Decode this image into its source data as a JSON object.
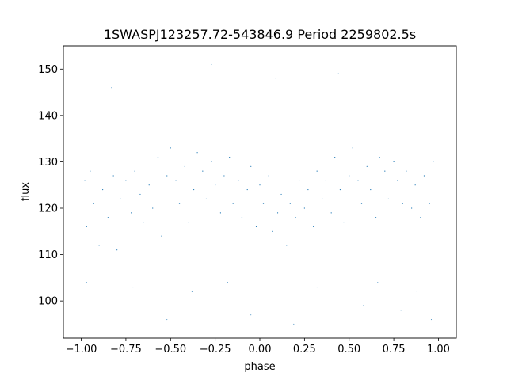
{
  "chart_data": {
    "type": "scatter",
    "title": "1SWASPJ123257.72-543846.9 Period 2259802.5s",
    "xlabel": "phase",
    "ylabel": "flux",
    "xlim": [
      -1.1,
      1.1
    ],
    "ylim": [
      92,
      155
    ],
    "xticks": [
      -1.0,
      -0.75,
      -0.5,
      -0.25,
      0.0,
      0.25,
      0.5,
      0.75,
      1.0
    ],
    "xtick_labels": [
      "−1.00",
      "−0.75",
      "−0.50",
      "−0.25",
      "0.00",
      "0.25",
      "0.50",
      "0.75",
      "1.00"
    ],
    "yticks": [
      100,
      110,
      120,
      130,
      140,
      150
    ],
    "ytick_labels": [
      "100",
      "110",
      "120",
      "130",
      "140",
      "150"
    ],
    "grid": false,
    "point_color": "#1f77b4",
    "phase_range": [
      -1.0,
      1.0
    ],
    "series": [
      {
        "values": [
          [
            -0.98,
            126
          ],
          [
            -0.97,
            116
          ],
          [
            -0.95,
            128
          ],
          [
            -0.93,
            121
          ],
          [
            -0.9,
            112
          ],
          [
            -0.88,
            124
          ],
          [
            -0.85,
            118
          ],
          [
            -0.82,
            127
          ],
          [
            -0.8,
            111
          ],
          [
            -0.78,
            122
          ],
          [
            -0.75,
            126
          ],
          [
            -0.72,
            119
          ],
          [
            -0.7,
            128
          ],
          [
            -0.67,
            123
          ],
          [
            -0.65,
            117
          ],
          [
            -0.62,
            125
          ],
          [
            -0.6,
            120
          ],
          [
            -0.57,
            131
          ],
          [
            -0.55,
            114
          ],
          [
            -0.52,
            127
          ],
          [
            -0.5,
            133
          ],
          [
            -0.47,
            126
          ],
          [
            -0.45,
            121
          ],
          [
            -0.42,
            129
          ],
          [
            -0.4,
            117
          ],
          [
            -0.37,
            124
          ],
          [
            -0.35,
            132
          ],
          [
            -0.32,
            128
          ],
          [
            -0.3,
            122
          ],
          [
            -0.27,
            130
          ],
          [
            -0.25,
            125
          ],
          [
            -0.22,
            119
          ],
          [
            -0.2,
            127
          ],
          [
            -0.17,
            131
          ],
          [
            -0.15,
            121
          ],
          [
            -0.12,
            126
          ],
          [
            -0.1,
            118
          ],
          [
            -0.07,
            124
          ],
          [
            -0.05,
            129
          ],
          [
            -0.02,
            116
          ],
          [
            0.0,
            125
          ],
          [
            0.02,
            121
          ],
          [
            0.05,
            127
          ],
          [
            0.07,
            115
          ],
          [
            0.1,
            119
          ],
          [
            0.12,
            123
          ],
          [
            0.15,
            112
          ],
          [
            0.17,
            121
          ],
          [
            0.2,
            118
          ],
          [
            0.22,
            126
          ],
          [
            0.25,
            120
          ],
          [
            0.27,
            124
          ],
          [
            0.3,
            116
          ],
          [
            0.32,
            128
          ],
          [
            0.35,
            122
          ],
          [
            0.37,
            126
          ],
          [
            0.4,
            119
          ],
          [
            0.42,
            131
          ],
          [
            0.45,
            124
          ],
          [
            0.47,
            117
          ],
          [
            0.5,
            127
          ],
          [
            0.52,
            133
          ],
          [
            0.55,
            126
          ],
          [
            0.57,
            121
          ],
          [
            0.6,
            129
          ],
          [
            0.62,
            124
          ],
          [
            0.65,
            118
          ],
          [
            0.67,
            131
          ],
          [
            0.7,
            128
          ],
          [
            0.72,
            122
          ],
          [
            0.75,
            130
          ],
          [
            0.77,
            126
          ],
          [
            0.8,
            121
          ],
          [
            0.82,
            128
          ],
          [
            0.85,
            120
          ],
          [
            0.87,
            125
          ],
          [
            0.9,
            118
          ],
          [
            0.92,
            127
          ],
          [
            0.95,
            121
          ],
          [
            0.97,
            130
          ]
        ]
      }
    ],
    "outliers": [
      [
        -0.97,
        104
      ],
      [
        -0.83,
        146
      ],
      [
        -0.71,
        103
      ],
      [
        -0.61,
        150
      ],
      [
        -0.52,
        96
      ],
      [
        -0.38,
        102
      ],
      [
        -0.27,
        151
      ],
      [
        -0.18,
        104
      ],
      [
        -0.05,
        97
      ],
      [
        0.09,
        148
      ],
      [
        0.19,
        95
      ],
      [
        0.32,
        103
      ],
      [
        0.44,
        149
      ],
      [
        0.58,
        99
      ],
      [
        0.66,
        104
      ],
      [
        0.79,
        98
      ],
      [
        0.88,
        102
      ],
      [
        0.96,
        96
      ]
    ]
  }
}
